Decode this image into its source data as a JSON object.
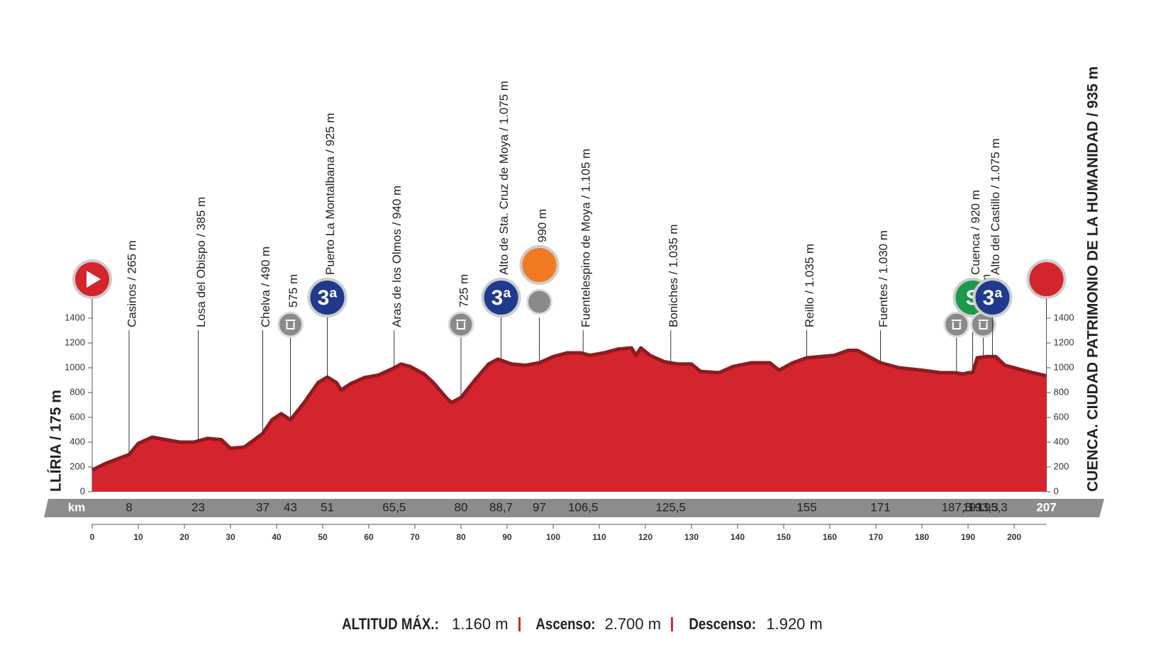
{
  "chart_data": {
    "type": "area",
    "start_label": "LLÍRIA / 175 m",
    "finish_label": "CUENCA. CIUDAD PATRIMONIO DE LA HUMANIDAD / 935 m",
    "x": [
      0,
      3,
      8,
      10,
      13,
      16,
      19,
      22,
      25,
      28,
      30,
      33,
      37,
      39,
      41,
      43,
      46,
      49,
      51,
      53,
      54,
      56,
      59,
      62,
      65,
      67,
      69,
      72,
      74,
      77,
      78,
      80,
      83,
      86,
      88,
      91,
      94,
      97,
      100,
      103,
      106,
      108,
      111,
      114,
      117,
      118,
      119,
      121,
      124,
      127,
      130,
      132,
      136,
      139,
      143,
      147,
      149,
      152,
      155,
      158,
      161,
      164,
      166,
      168,
      171,
      175,
      180,
      184,
      187,
      189,
      190,
      191,
      192,
      194,
      196,
      198,
      201,
      204,
      207
    ],
    "values": [
      175,
      230,
      300,
      390,
      440,
      420,
      400,
      400,
      430,
      420,
      350,
      360,
      470,
      580,
      630,
      580,
      720,
      880,
      925,
      880,
      820,
      870,
      920,
      940,
      990,
      1030,
      1010,
      950,
      880,
      750,
      720,
      760,
      900,
      1030,
      1070,
      1030,
      1020,
      1040,
      1090,
      1120,
      1120,
      1100,
      1120,
      1150,
      1160,
      1100,
      1160,
      1100,
      1050,
      1030,
      1030,
      970,
      960,
      1010,
      1040,
      1040,
      980,
      1040,
      1080,
      1090,
      1100,
      1140,
      1140,
      1100,
      1040,
      1000,
      980,
      960,
      960,
      950,
      960,
      960,
      1080,
      1090,
      1090,
      1020,
      990,
      960,
      935
    ],
    "color": "#d4242e",
    "xlim": [
      0,
      207
    ],
    "xticks": [
      0,
      10,
      20,
      30,
      40,
      50,
      60,
      70,
      80,
      90,
      100,
      110,
      120,
      130,
      140,
      150,
      160,
      170,
      180,
      190,
      200
    ],
    "ylim": [
      0,
      1400
    ],
    "yticks": [
      0,
      200,
      400,
      600,
      800,
      1000,
      1200,
      1400
    ],
    "km_label": "km",
    "waypoints": [
      {
        "km": 8,
        "label": "Casinos / 265 m"
      },
      {
        "km": 23,
        "label": "Losa del Obispo / 385 m"
      },
      {
        "km": 37,
        "label": "Chelva / 490 m"
      },
      {
        "km": 43,
        "label": "575 m"
      },
      {
        "km": 51,
        "label": "Puerto La Montalbana / 925 m",
        "badge": "3ª"
      },
      {
        "km": {
          "value": 65.5,
          "label": "65,5"
        },
        "label": "Aras de los Olmos / 940 m"
      },
      {
        "km": 80,
        "label": "725 m"
      },
      {
        "km": {
          "value": 88.7,
          "label": "88,7"
        },
        "label": "Alto de Sta. Cruz de Moya / 1.075 m",
        "badge": "3ª"
      },
      {
        "km": 97,
        "label": "990 m"
      },
      {
        "km": {
          "value": 106.5,
          "label": "106,5"
        },
        "label": "Fuentelespino de Moya / 1.105 m"
      },
      {
        "km": {
          "value": 125.5,
          "label": "125,5"
        },
        "label": "Boniches / 1.035 m"
      },
      {
        "km": 155,
        "label": "Reillo / 1.035 m"
      },
      {
        "km": 171,
        "label": "Fuentes / 1.030 m"
      },
      {
        "km": {
          "value": 187.5,
          "label": "187,5"
        }
      },
      {
        "km": 191,
        "label": "Cuenca / 920 m",
        "badge": "S"
      },
      {
        "km": {
          "value": 193.3,
          "label": "193,3"
        },
        "label": "930 m"
      },
      {
        "km": {
          "value": 195.3,
          "label": "195,3"
        },
        "label": "Alto del Castillo / 1.075 m",
        "badge": "3ª"
      },
      {
        "km": 207
      }
    ],
    "stats": [
      {
        "label": "ALTITUD MÁX.:",
        "value": "1.160 m"
      },
      {
        "label": "Ascenso:",
        "value": "2.700 m"
      },
      {
        "label": "Descenso:",
        "value": "1.920 m"
      }
    ]
  }
}
